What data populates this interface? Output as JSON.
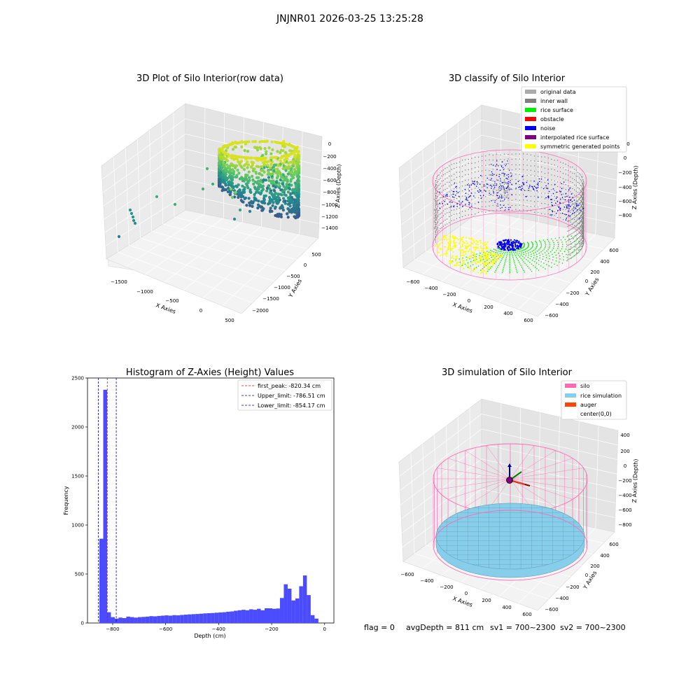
{
  "figure": {
    "suptitle": "JNJNR01 2026-03-25 13:25:28",
    "footer": {
      "flag": "flag = 0",
      "avg_depth": "avgDepth = 811 cm",
      "sv1": "sv1 = 700~2300",
      "sv2": "sv2 = 700~2300"
    }
  },
  "colors": {
    "raw_low": "#3b528b",
    "raw_mid": "#21a585",
    "raw_high": "#e5e419",
    "original": "#aaaaaa",
    "inner_wall": "#808080",
    "rice_surface": "#00ee00",
    "obstacle": "#ff0000",
    "noise": "#0000ee",
    "interpolated": "#800080",
    "symmetric": "#ffff00",
    "silo": "#ff69b4",
    "rice_sim": "#87ceeb",
    "auger": "#ff4500",
    "hist_bar": "#4b4bff",
    "peak_line": "#ff0000",
    "limit_line": "#0000cc"
  },
  "chart_data": [
    {
      "type": "scatter",
      "subtype": "3d",
      "title": "3D Plot of Silo Interior(row data)",
      "xlabel": "X Axies",
      "ylabel": "Y Axies",
      "zlabel": "Z Axies (Depth)",
      "xticks": [
        "−1500",
        "−1000",
        "−500",
        "0",
        "500"
      ],
      "yticks": [
        "500",
        "0",
        "−500",
        "−1000",
        "−1500",
        "−2000"
      ],
      "zticks": [
        "0",
        "−200",
        "−400",
        "−600",
        "−800",
        "−1000",
        "−1200",
        "−1400"
      ],
      "xlim": [
        -1650,
        600
      ],
      "ylim": [
        -2100,
        650
      ],
      "zlim": [
        -1450,
        80
      ]
    },
    {
      "type": "scatter",
      "subtype": "3d",
      "title": "3D classify of Silo Interior",
      "xlabel": "X Axies",
      "ylabel": "Y Axies",
      "zlabel": "Z Axies (Depth)",
      "xticks": [
        "−600",
        "−400",
        "−200",
        "0",
        "200",
        "400",
        "600"
      ],
      "yticks": [
        "600",
        "400",
        "200",
        "0",
        "−200",
        "−400",
        "−600"
      ],
      "zticks": [
        "200",
        "0",
        "−200",
        "−400",
        "−600",
        "−800"
      ],
      "legend": [
        "original data",
        "inner wall",
        "rice surface",
        "obstacle",
        "noise",
        "interpolated rice surface",
        "symmetric generated points"
      ],
      "legend_loc": "upper right",
      "xlim": [
        -650,
        650
      ],
      "ylim": [
        -650,
        650
      ],
      "zlim": [
        -900,
        300
      ]
    },
    {
      "type": "bar",
      "subtype": "histogram",
      "title": "Histogram of Z-Axies (Height) Values",
      "xlabel": "Depth (cm)",
      "ylabel": "Frequency",
      "xticks": [
        "−800",
        "−600",
        "−400",
        "−200",
        "0"
      ],
      "yticks": [
        "0",
        "500",
        "1000",
        "1500",
        "2000",
        "2500"
      ],
      "xlim": [
        -895,
        35
      ],
      "ylim": [
        0,
        2500
      ],
      "bin_width": 14.5,
      "x": [
        -842.8,
        -828.3,
        -813.8,
        -799.3,
        -784.8,
        -770.3,
        -755.8,
        -741.3,
        -726.8,
        -712.3,
        -697.8,
        -683.3,
        -668.8,
        -654.3,
        -639.8,
        -625.3,
        -610.8,
        -596.3,
        -581.8,
        -567.3,
        -552.8,
        -538.3,
        -523.8,
        -509.3,
        -494.8,
        -480.3,
        -465.8,
        -451.3,
        -436.8,
        -422.3,
        -407.8,
        -393.3,
        -378.8,
        -364.3,
        -349.8,
        -335.3,
        -320.8,
        -306.3,
        -291.8,
        -277.3,
        -262.8,
        -248.3,
        -233.8,
        -219.3,
        -204.8,
        -190.3,
        -175.8,
        -161.3,
        -146.8,
        -132.3,
        -117.8,
        -103.3,
        -88.8,
        -74.3,
        -59.8,
        -45.3,
        -30.8,
        -16.3,
        -1.8
      ],
      "values": [
        860,
        2380,
        110,
        60,
        45,
        55,
        50,
        65,
        60,
        55,
        60,
        62,
        65,
        70,
        68,
        72,
        75,
        78,
        75,
        80,
        78,
        82,
        85,
        88,
        90,
        92,
        95,
        98,
        100,
        102,
        105,
        108,
        110,
        115,
        118,
        125,
        130,
        135,
        130,
        140,
        135,
        145,
        130,
        150,
        150,
        145,
        148,
        255,
        395,
        350,
        230,
        250,
        375,
        485,
        285,
        80,
        45,
        0,
        0
      ],
      "series": [
        {
          "name": "first_peak: -820.34 cm",
          "x": -820.34
        },
        {
          "name": "Upper_limit: -786.51 cm",
          "x": -786.51
        },
        {
          "name": "Lower_limit: -854.17 cm",
          "x": -854.17
        }
      ],
      "legend_loc": "upper right"
    },
    {
      "type": "scatter",
      "subtype": "3d",
      "title": "3D simulation of Silo Interior",
      "xlabel": "X Axies",
      "ylabel": "Y Axies",
      "zlabel": "Z Axies (Depth)",
      "xticks": [
        "−600",
        "−400",
        "−200",
        "0",
        "200",
        "400",
        "600"
      ],
      "yticks": [
        "600",
        "400",
        "200",
        "0",
        "−200",
        "−400",
        "−600"
      ],
      "zticks": [
        "400",
        "200",
        "0",
        "−200",
        "−400",
        "−600",
        "−800"
      ],
      "legend": [
        "silo",
        "rice simulation",
        "auger",
        "center(0,0)"
      ],
      "legend_loc": "upper right",
      "xlim": [
        -650,
        650
      ],
      "ylim": [
        -650,
        650
      ],
      "zlim": [
        -900,
        450
      ]
    }
  ]
}
